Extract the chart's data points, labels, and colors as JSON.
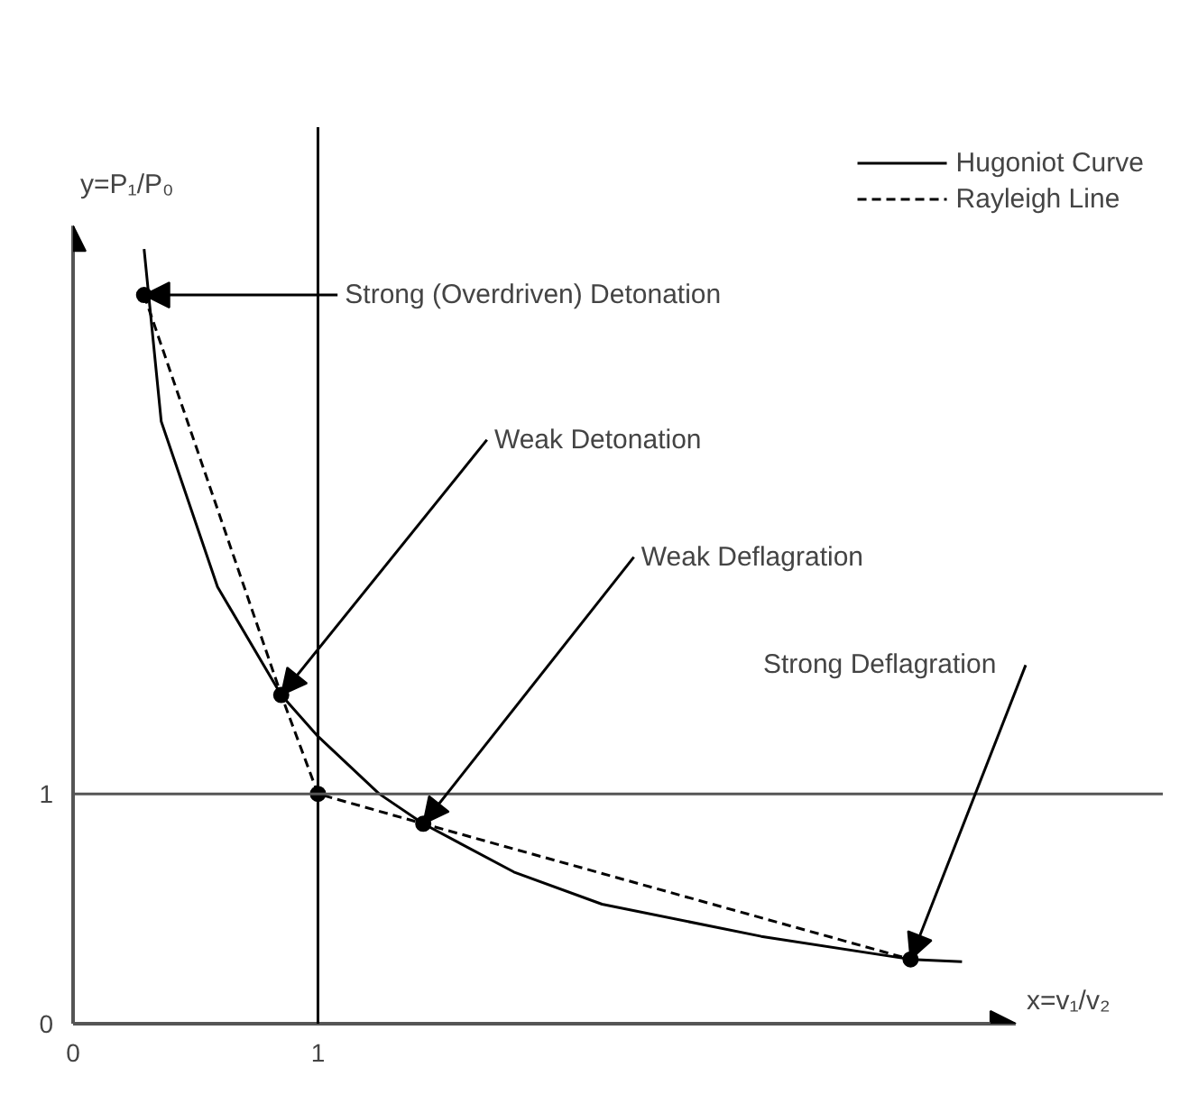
{
  "chart_data": {
    "type": "line",
    "xlabel": "x=v₁/v₂",
    "ylabel": "y=P₁/P₀",
    "series": [
      {
        "name": "Hugoniot Curve",
        "color": "#000000",
        "line_style": "solid",
        "marker": "none",
        "x": [
          0.29,
          0.36,
          0.59,
          0.85,
          1,
          1.25,
          1.43,
          1.8,
          2.16,
          2.81,
          3.42,
          3.63
        ],
        "values": [
          3.37,
          2.62,
          1.9,
          1.43,
          1.25,
          1.0,
          0.87,
          0.66,
          0.52,
          0.38,
          0.28,
          0.27
        ]
      },
      {
        "name": "Rayleigh Line",
        "color": "#000000",
        "line_style": "dashed",
        "marker": "none",
        "x": [
          0.29,
          0.85,
          1,
          1.43,
          3.42
        ],
        "values": [
          3.17,
          1.43,
          1,
          0.87,
          0.28
        ]
      },
      {
        "type": "scatter",
        "color": "#000000",
        "marker": "circle",
        "x": [
          0.29,
          0.85,
          1,
          1.43,
          3.42
        ],
        "values": [
          3.17,
          1.43,
          1,
          0.87,
          0.28
        ]
      }
    ],
    "annotations": [
      {
        "text": "Strong (Overdriven) Detonation",
        "x": 0.29,
        "y": 3.17
      },
      {
        "text": "Weak Detonation",
        "x": 0.85,
        "y": 1.43
      },
      {
        "text": "Weak Deflagration",
        "x": 1.43,
        "y": 0.87
      },
      {
        "text": "Strong Deflagration",
        "x": 3.42,
        "y": 0.28
      }
    ],
    "ref_lines": [
      {
        "axis": "x",
        "value": 1,
        "color": "#000000"
      },
      {
        "axis": "y",
        "value": 1,
        "color": "#555555"
      }
    ],
    "xlim": [
      0,
      4.45
    ],
    "ylim": [
      0,
      3.9
    ],
    "xticks": [
      0,
      1
    ],
    "yticks": [
      0,
      1
    ],
    "grid": false,
    "legend": "top right"
  }
}
